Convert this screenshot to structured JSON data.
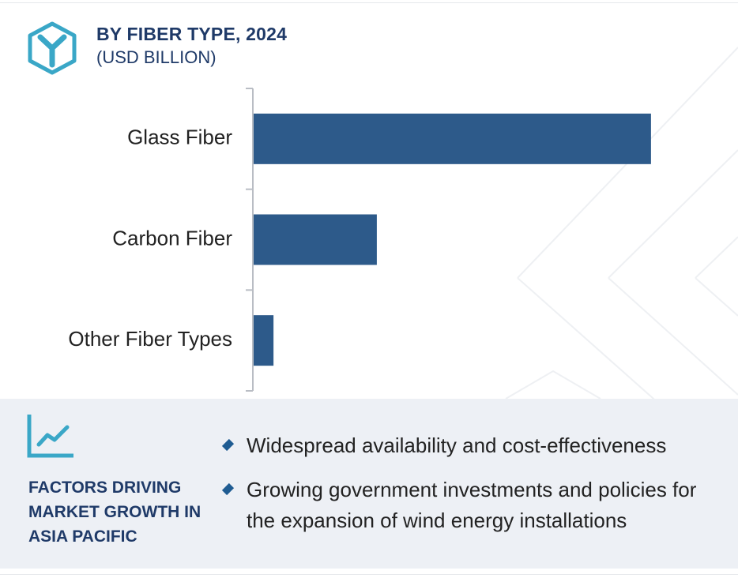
{
  "header": {
    "title": "BY FIBER TYPE, 2024",
    "subtitle": "(USD BILLION)",
    "logo_icon": "hexagon-y-logo-icon"
  },
  "chart_data": {
    "type": "bar",
    "orientation": "horizontal",
    "title": "BY FIBER TYPE, 2024",
    "subtitle": "(USD BILLION)",
    "categories": [
      "Glass Fiber",
      "Carbon Fiber",
      "Other Fiber Types"
    ],
    "values": [
      10.0,
      3.1,
      0.5
    ],
    "xlim": [
      0,
      10.4
    ],
    "axis_values_shown": false,
    "grid": false,
    "bar_color": "#2d5a8a"
  },
  "factors": {
    "icon": "trend-chart-icon",
    "heading": "FACTORS DRIVING MARKET GROWTH IN ASIA PACIFIC",
    "bullets": [
      "Widespread availability and cost-effectiveness",
      "Growing government investments and policies for the expansion of wind energy installations"
    ]
  },
  "colors": {
    "accent": "#3aa7c7",
    "title": "#1f3a68",
    "bar": "#2d5a8a",
    "panel": "#edf0f5"
  }
}
